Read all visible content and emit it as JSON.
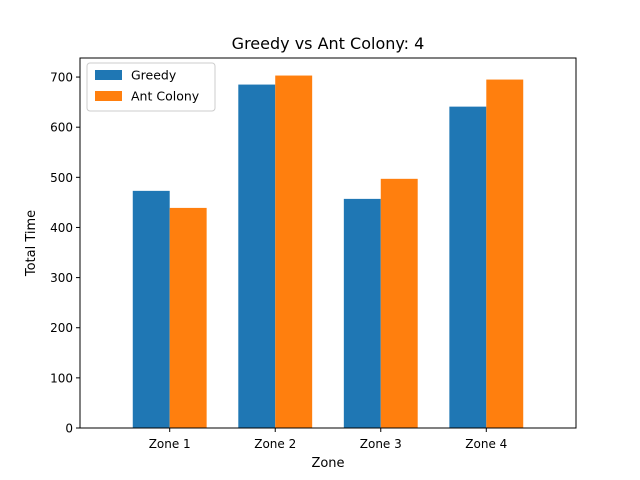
{
  "chart_data": {
    "type": "bar",
    "title": "Greedy vs Ant Colony: 4",
    "xlabel": "Zone",
    "ylabel": "Total Time",
    "categories": [
      "Zone 1",
      "Zone 2",
      "Zone 3",
      "Zone 4"
    ],
    "series": [
      {
        "name": "Greedy",
        "color": "#1f77b4",
        "values": [
          473,
          685,
          457,
          641
        ]
      },
      {
        "name": "Ant Colony",
        "color": "#ff7f0e",
        "values": [
          439,
          703,
          497,
          695
        ]
      }
    ],
    "ylim": [
      0,
      738
    ],
    "yticks": [
      0,
      100,
      200,
      300,
      400,
      500,
      600,
      700
    ],
    "grid": false,
    "legend": "top-left"
  }
}
